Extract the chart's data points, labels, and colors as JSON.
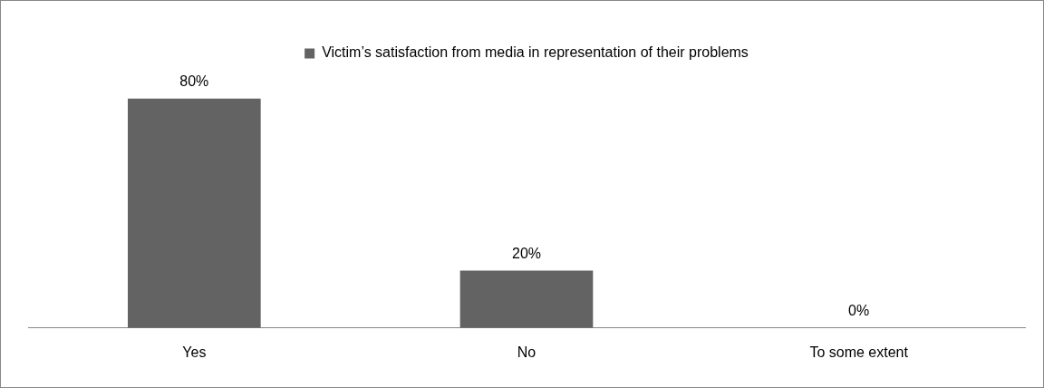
{
  "chart_data": {
    "type": "bar",
    "categories": [
      "Yes",
      "No",
      "To some extent"
    ],
    "series": [
      {
        "name": "Victim’s satisfaction from media in representation of their problems",
        "color": "#636363",
        "values": [
          80,
          20,
          0
        ],
        "value_labels": [
          "80%",
          "20%",
          "0%"
        ]
      }
    ],
    "legend": "top",
    "grid": false
  }
}
